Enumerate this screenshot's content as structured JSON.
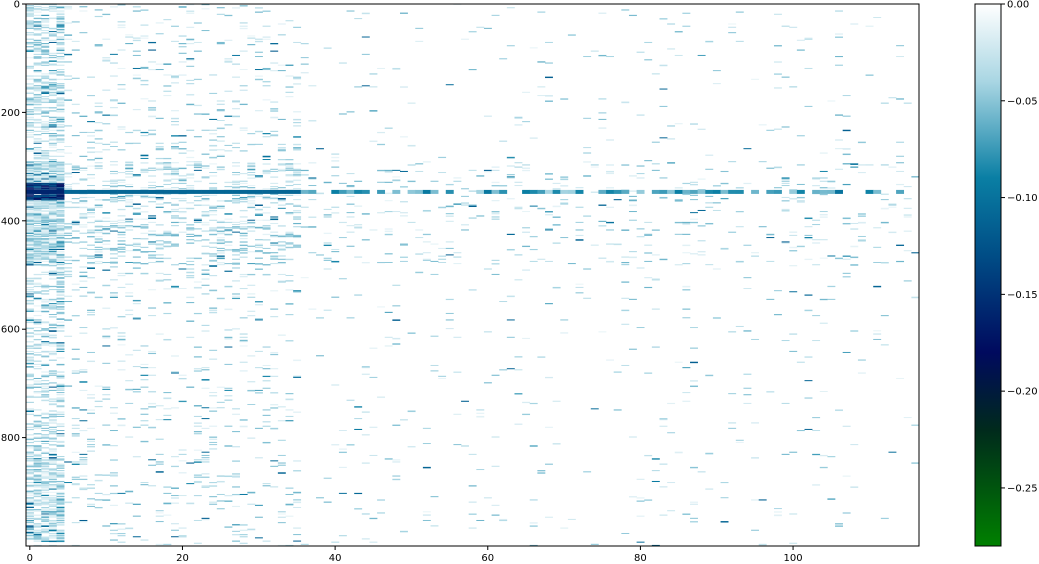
{
  "chart_data": {
    "type": "heatmap",
    "title": "",
    "xlabel": "",
    "ylabel": "",
    "x_ticks": [
      0,
      20,
      40,
      60,
      80,
      100
    ],
    "y_ticks": [
      0,
      200,
      400,
      600,
      800
    ],
    "xlim": [
      -0.5,
      116.5
    ],
    "ylim": [
      1000,
      0
    ],
    "colormap": "ocean-like (white at 0.00, light blue, teal, navy, dark green at minimum)",
    "colorbar": {
      "ticks": [
        0.0,
        -0.05,
        -0.1,
        -0.15,
        -0.2,
        -0.25
      ],
      "tick_labels": [
        "0.00",
        "−0.05",
        "−0.10",
        "−0.15",
        "−0.20",
        "−0.25"
      ],
      "range": [
        -0.28,
        0.0
      ]
    },
    "colormap_stops": [
      {
        "value": 0.0,
        "color": "#ffffff"
      },
      {
        "value": -0.04,
        "color": "#a9d6e3"
      },
      {
        "value": -0.09,
        "color": "#0a7fa4"
      },
      {
        "value": -0.13,
        "color": "#004d86"
      },
      {
        "value": -0.18,
        "color": "#000a5e"
      },
      {
        "value": -0.22,
        "color": "#002a1c"
      },
      {
        "value": -0.28,
        "color": "#008000"
      }
    ],
    "bands": [
      {
        "label": "dense row block",
        "row_start": 290,
        "row_end": 480,
        "col_start": 0,
        "col_end": 35,
        "typical_value": -0.05
      },
      {
        "label": "strong horizontal line",
        "row": 345,
        "col_start": 0,
        "col_end": 116,
        "typical_value": -0.11
      },
      {
        "label": "left columns",
        "row_start": 0,
        "row_end": 1000,
        "col_start": 0,
        "col_end": 4,
        "typical_value": -0.03
      },
      {
        "label": "darkest cells",
        "row_start": 330,
        "row_end": 360,
        "col_start": 0,
        "col_end": 4,
        "typical_value": -0.17
      }
    ]
  }
}
